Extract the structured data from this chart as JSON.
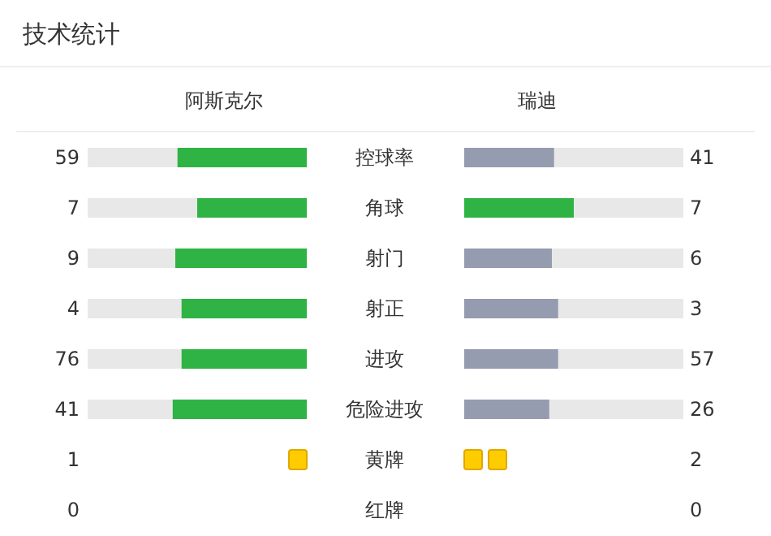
{
  "chart_data": [
    {
      "type": "other",
      "title": "技术统计",
      "data_labels": true,
      "categories": [
        "控球率",
        "角球",
        "射门",
        "射正",
        "进攻",
        "危险进攻"
      ],
      "series": [
        {
          "name": "阿斯克尔",
          "values": [
            59,
            7,
            9,
            4,
            76,
            41
          ],
          "colors": [
            "#2fb344",
            "#2fb344",
            "#2fb344",
            "#2fb344",
            "#2fb344",
            "#2fb344"
          ]
        },
        {
          "name": "瑞迪",
          "values": [
            41,
            7,
            6,
            3,
            57,
            26
          ],
          "colors": [
            "#959caf",
            "#2fb344",
            "#959caf",
            "#959caf",
            "#959caf",
            "#959caf"
          ]
        }
      ]
    },
    {
      "type": "other",
      "data_labels": true,
      "categories": [
        "黄牌",
        "红牌"
      ],
      "series": [
        {
          "values": [
            1,
            0
          ],
          "color": "#ffcc00"
        },
        {
          "values": [
            2,
            0
          ],
          "color": "#ffcc00"
        }
      ]
    }
  ]
}
